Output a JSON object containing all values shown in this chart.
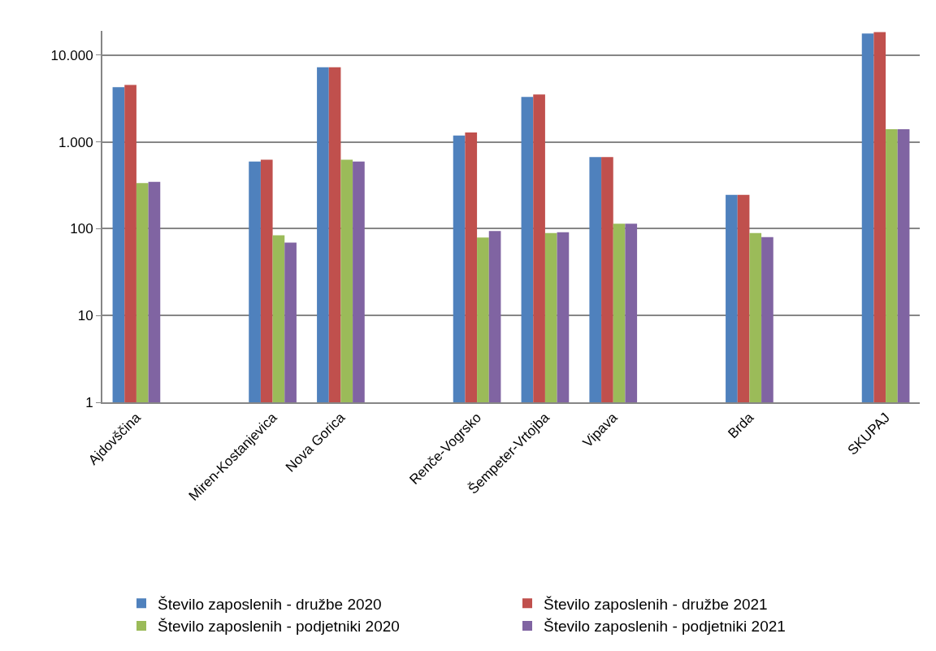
{
  "chart_data": {
    "type": "bar",
    "categories": [
      "Ajdovščina",
      null,
      "Miren-Kostanjevica",
      "Nova Gorica",
      null,
      "Renče-Vogrsko",
      "Šempeter-Vrtojba",
      "Vipava",
      null,
      "Brda",
      null,
      "SKUPAJ"
    ],
    "series": [
      {
        "name": "Število zaposlenih - družbe 2020",
        "color": "#4f81bd",
        "values": [
          4280,
          null,
          593,
          7260,
          null,
          1183,
          3300,
          670,
          null,
          245,
          null,
          17700
        ]
      },
      {
        "name": "Število zaposlenih - družbe 2021",
        "color": "#c0504d",
        "values": [
          4540,
          null,
          625,
          7260,
          null,
          1283,
          3510,
          670,
          null,
          245,
          null,
          18400
        ]
      },
      {
        "name": "Število zaposlenih - podjetniki 2020",
        "color": "#9bbb59",
        "values": [
          336,
          null,
          84,
          625,
          null,
          79,
          89,
          114,
          null,
          89,
          null,
          1400
        ]
      },
      {
        "name": "Število zaposlenih - podjetniki 2021",
        "color": "#8064a2",
        "values": [
          347,
          null,
          69,
          593,
          null,
          94,
          91,
          114,
          null,
          80,
          null,
          1400
        ]
      }
    ],
    "log": "y",
    "ylim": [
      1,
      19000
    ],
    "yticks": [
      1,
      10,
      100,
      {
        "value": 1000,
        "label": "1.000"
      },
      {
        "value": 10000,
        "label": "10.000"
      }
    ],
    "grid": "y",
    "legend": "bottom"
  }
}
